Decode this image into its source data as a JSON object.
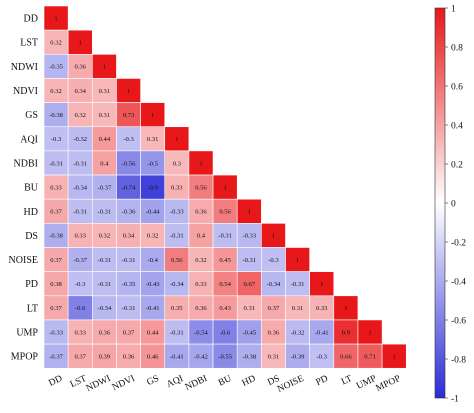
{
  "chart_data": {
    "type": "heatmap",
    "layout": "lower-triangle",
    "variables": [
      "DD",
      "LST",
      "NDWI",
      "NDVI",
      "GS",
      "AQI",
      "NDBI",
      "BU",
      "HD",
      "DS",
      "NOISE",
      "PD",
      "LT",
      "UMP",
      "MPOP"
    ],
    "matrix": [
      [
        "1"
      ],
      [
        "0.32",
        "1"
      ],
      [
        "-0.35",
        "0.36",
        "1"
      ],
      [
        "0.32",
        "0.34",
        "0.31",
        "1"
      ],
      [
        "-0.38",
        "0.32",
        "0.31",
        "0.73",
        "1"
      ],
      [
        "-0.3",
        "-0.32",
        "0.44",
        "-0.3",
        "0.31",
        "1"
      ],
      [
        "-0.31",
        "-0.31",
        "0.4",
        "-0.56",
        "-0.5",
        "0.3",
        "1"
      ],
      [
        "0.33",
        "-0.34",
        "-0.37",
        "-0.74",
        "-0.9",
        "0.33",
        "0.56",
        "1"
      ],
      [
        "0.37",
        "-0.31",
        "-0.31",
        "-0.36",
        "-0.44",
        "-0.33",
        "0.36",
        "0.56",
        "1"
      ],
      [
        "-0.38",
        "0.33",
        "0.32",
        "0.34",
        "0.32",
        "-0.31",
        "0.4",
        "-0.31",
        "-0.33",
        "1"
      ],
      [
        "0.37",
        "-0.37",
        "-0.31",
        "-0.31",
        "-0.4",
        "0.56",
        "0.32",
        "0.45",
        "-0.31",
        "-0.3",
        "1"
      ],
      [
        "0.38",
        "-0.3",
        "-0.31",
        "-0.35",
        "-0.43",
        "-0.34",
        "0.33",
        "0.54",
        "0.67",
        "-0.34",
        "-0.31",
        "1"
      ],
      [
        "0.37",
        "-0.6",
        "-0.34",
        "-0.31",
        "-0.41",
        "0.35",
        "0.36",
        "0.43",
        "0.31",
        "0.37",
        "0.31",
        "0.33",
        "1"
      ],
      [
        "-0.33",
        "0.33",
        "0.36",
        "0.37",
        "0.44",
        "-0.31",
        "-0.54",
        "-0.6",
        "-0.45",
        "0.36",
        "-0.32",
        "-0.41",
        "0.9",
        "1"
      ],
      [
        "-0.37",
        "0.37",
        "0.39",
        "0.36",
        "0.46",
        "-0.41",
        "-0.42",
        "-0.55",
        "-0.38",
        "0.31",
        "-0.39",
        "-0.3",
        "0.66",
        "0.71",
        "1"
      ]
    ],
    "colorbar": {
      "range": [
        -1,
        1
      ],
      "ticks": [
        "1",
        "0.8",
        "0.6",
        "0.4",
        "0.2",
        "0",
        "-0.2",
        "-0.4",
        "-0.6",
        "-0.8",
        "-1"
      ],
      "low_color": "#2b2bd6",
      "mid_color": "#ffffff",
      "high_color": "#e8171a"
    },
    "grid": false
  }
}
